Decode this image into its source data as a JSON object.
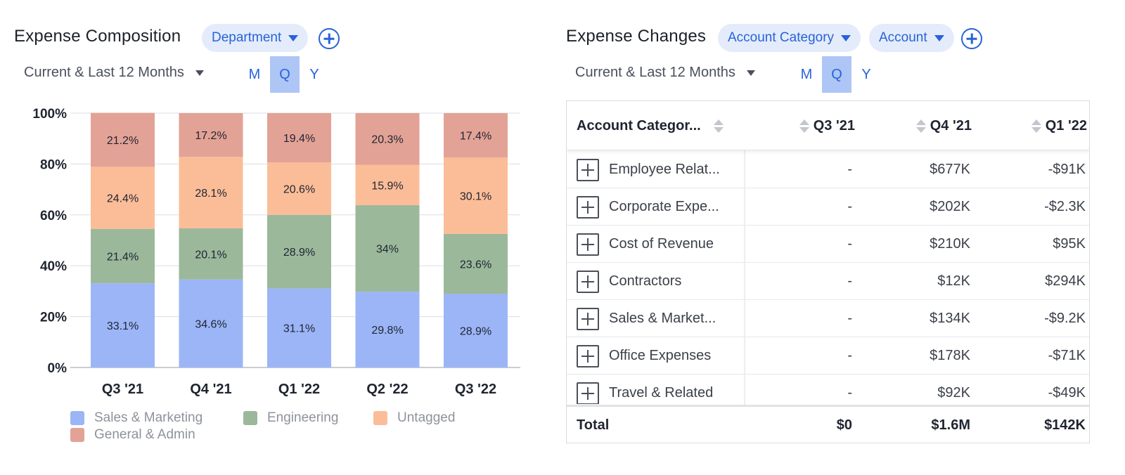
{
  "left_panel": {
    "title": "Expense Composition",
    "chip_department": "Department",
    "period": "Current & Last 12 Months",
    "granularity": [
      "M",
      "Q",
      "Y"
    ],
    "active_granularity": "Q"
  },
  "right_panel": {
    "title": "Expense Changes",
    "chip_account_category": "Account Category",
    "chip_account": "Account",
    "period": "Current & Last 12 Months",
    "granularity": [
      "M",
      "Q",
      "Y"
    ],
    "active_granularity": "Q"
  },
  "chart_data": {
    "type": "bar",
    "stacked": true,
    "categories": [
      "Q3 '21",
      "Q4 '21",
      "Q1 '22",
      "Q2 '22",
      "Q3 '22"
    ],
    "y_ticks": [
      "0%",
      "20%",
      "40%",
      "60%",
      "80%",
      "100%"
    ],
    "ylim": [
      0,
      100
    ],
    "legend_position": "bottom",
    "series": [
      {
        "name": "Sales & Marketing",
        "color": "#9bb5f7",
        "values": [
          33.1,
          34.6,
          31.1,
          29.8,
          28.9
        ],
        "labels": [
          "33.1%",
          "34.6%",
          "31.1%",
          "29.8%",
          "28.9%"
        ]
      },
      {
        "name": "Engineering",
        "color": "#9bb89b",
        "values": [
          21.4,
          20.1,
          28.9,
          34,
          23.6
        ],
        "labels": [
          "21.4%",
          "20.1%",
          "28.9%",
          "34%",
          "23.6%"
        ]
      },
      {
        "name": "Untagged",
        "color": "#fbbd98",
        "values": [
          24.4,
          28.1,
          20.6,
          15.9,
          30.1
        ],
        "labels": [
          "24.4%",
          "28.1%",
          "20.6%",
          "15.9%",
          "30.1%"
        ]
      },
      {
        "name": "General & Admin",
        "color": "#e3a296",
        "values": [
          21.2,
          17.2,
          19.4,
          20.3,
          17.4
        ],
        "labels": [
          "21.2%",
          "17.2%",
          "19.4%",
          "20.3%",
          "17.4%"
        ]
      }
    ]
  },
  "table": {
    "columns": [
      "Account Categor...",
      "Q3 '21",
      "Q4 '21",
      "Q1 '22"
    ],
    "rows": [
      {
        "label": "Employee Relat...",
        "q3_21": "-",
        "q4_21": "$677K",
        "q1_22": "-$91K"
      },
      {
        "label": "Corporate Expe...",
        "q3_21": "-",
        "q4_21": "$202K",
        "q1_22": "-$2.3K"
      },
      {
        "label": "Cost of Revenue",
        "q3_21": "-",
        "q4_21": "$210K",
        "q1_22": "$95K"
      },
      {
        "label": "Contractors",
        "q3_21": "-",
        "q4_21": "$12K",
        "q1_22": "$294K"
      },
      {
        "label": "Sales & Market...",
        "q3_21": "-",
        "q4_21": "$134K",
        "q1_22": "-$9.2K"
      },
      {
        "label": "Office Expenses",
        "q3_21": "-",
        "q4_21": "$178K",
        "q1_22": "-$71K"
      },
      {
        "label": "Travel & Related",
        "q3_21": "-",
        "q4_21": "$92K",
        "q1_22": "-$49K"
      }
    ],
    "total": {
      "label": "Total",
      "q3_21": "$0",
      "q4_21": "$1.6M",
      "q1_22": "$142K"
    }
  }
}
